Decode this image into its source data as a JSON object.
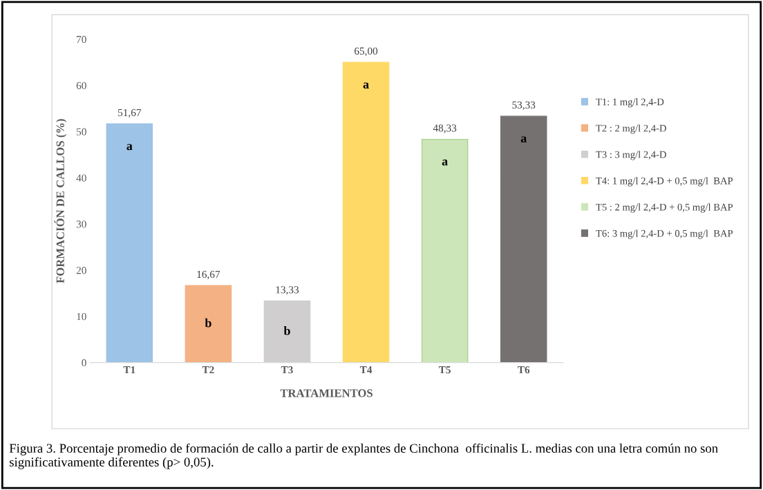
{
  "chart_data": {
    "type": "bar",
    "xlabel": "TRATAMIENTOS",
    "ylabel": "FORMACIÓN DE CALLOS (%)",
    "categories": [
      "T1",
      "T2",
      "T3",
      "T4",
      "T5",
      "T6"
    ],
    "series": [
      {
        "name": "T1: 1 mg/l 2,4-D",
        "color": "#9dc3e6",
        "values": [
          51.67,
          null,
          null,
          null,
          null,
          null
        ],
        "value_labels": [
          "51,67",
          null,
          null,
          null,
          null,
          null
        ]
      },
      {
        "name": "T2 : 2 mg/l 2,4-D",
        "color": "#f4b183",
        "values": [
          null,
          16.67,
          null,
          null,
          null,
          null
        ],
        "value_labels": [
          null,
          "16,67",
          null,
          null,
          null,
          null
        ]
      },
      {
        "name": "T3 : 3 mg/l 2,4-D",
        "color": "#d0cece",
        "values": [
          null,
          null,
          13.33,
          null,
          null,
          null
        ],
        "value_labels": [
          null,
          null,
          "13,33",
          null,
          null,
          null
        ]
      },
      {
        "name": "T4: 1 mg/l 2,4-D + 0,5 mg/l  BAP",
        "color": "#ffd966",
        "values": [
          null,
          null,
          null,
          65.0,
          null,
          null
        ],
        "value_labels": [
          null,
          null,
          null,
          "65,00",
          null,
          null
        ]
      },
      {
        "name": "T5 : 2 mg/l 2,4-D + 0,5 mg/l BAP",
        "color": "#cde6b9",
        "values": [
          null,
          null,
          null,
          null,
          48.33,
          null
        ],
        "value_labels": [
          null,
          null,
          null,
          null,
          "48,33",
          null
        ]
      },
      {
        "name": "T6: 3 mg/l 2,4-D + 0,5 mg/l  BAP",
        "color": "#767171",
        "values": [
          null,
          null,
          null,
          null,
          null,
          53.33
        ],
        "value_labels": [
          null,
          null,
          null,
          null,
          null,
          "53,33"
        ]
      }
    ],
    "ylim": [
      0,
      70
    ],
    "yticks": [
      0,
      10,
      20,
      30,
      40,
      50,
      60,
      70
    ],
    "legend": "right",
    "grid": false,
    "annotations": [
      "a",
      "b",
      "b",
      "a",
      "a",
      "a",
      "Figura 3. Porcentaje promedio de formación de callo a partir de explantes de Cinchona  officinalis L. medias con una letra común no son significativamente diferentes (p> 0,05)."
    ]
  }
}
